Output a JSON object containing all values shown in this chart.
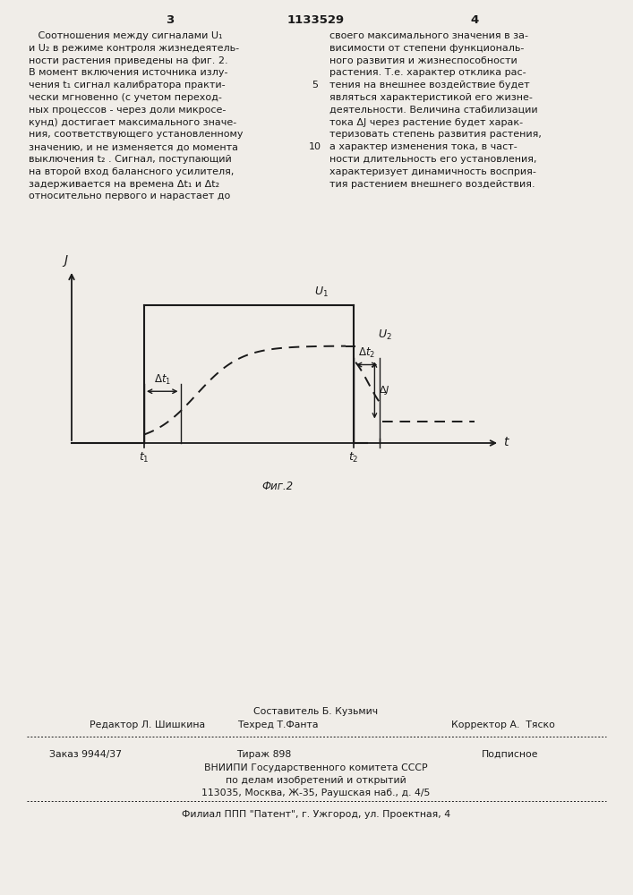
{
  "page_title": "1133529",
  "page_num_left": "3",
  "page_num_right": "4",
  "col_left_text": [
    "   Соотношения между сигналами U₁",
    "и U₂ в режиме контроля жизнедеятель-",
    "ности растения приведены на фиг. 2.",
    "В момент включения источника излу-",
    "чения t₁ сигнал калибратора практи-",
    "чески мгновенно (с учетом переход-",
    "ных процессов - через доли микросе-",
    "кунд) достигает максимального значе-",
    "ния, соответствующего установленному",
    "значению, и не изменяется до момента",
    "выключения t₂ . Сигнал, поступающий",
    "на второй вход балансного усилителя,",
    "задерживается на времена Δt₁ и Δt₂",
    "относительно первого и нарастает до"
  ],
  "line_num_5": "5",
  "line_num_10": "10",
  "col_right_text": [
    "своего максимального значения в за-",
    "висимости от степени функциональ-",
    "ного развития и жизнеспособности",
    "растения. Т.е. характер отклика рас-",
    "тения на внешнее воздействие будет",
    "являться характеристикой его жизне-",
    "деятельности. Величина стабилизации",
    "тока ΔJ через растение будет харак-",
    "теризовать степень развития растения,",
    "а характер изменения тока, в част-",
    "ности длительность его установления,",
    "характеризует динамичность восприя-",
    "тия растением внешнего воздействия."
  ],
  "fig_caption": "Фиг.2",
  "footer_sestavitel": "Составитель Б. Кузьмич",
  "footer_redaktor": "Редактор Л. Шишкина",
  "footer_tehred": "Техред Т.Фанта",
  "footer_korrektor": "Корректор А.  Тяско",
  "footer_zakaz": "Заказ 9944/37",
  "footer_tirazh": "Тираж 898",
  "footer_podpisnoe": "Подписное",
  "footer_vniipи": "ВНИИПИ Государственного комитета СССР",
  "footer_po_delam": "по делам изобретений и открытий",
  "footer_address": "113035, Москва, Ж-35, Раушская наб., д. 4/5",
  "footer_filial": "Филиал ППП \"Патент\", г. Ужгород, ул. Проектная, 4",
  "bg_color": "#f0ede8",
  "text_color": "#1a1a1a"
}
